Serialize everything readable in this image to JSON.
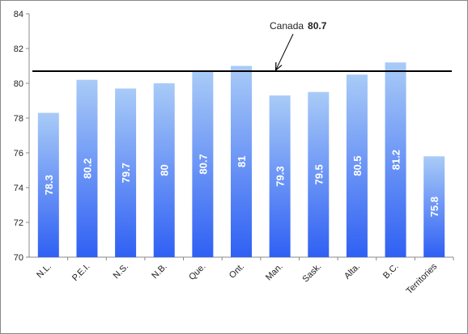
{
  "chart_data": {
    "type": "bar",
    "categories": [
      "N.L.",
      "P.E.I.",
      "N.S.",
      "N.B.",
      "Que.",
      "Ont.",
      "Man.",
      "Sask.",
      "Alta.",
      "B.C.",
      "Territories"
    ],
    "values": [
      78.3,
      80.2,
      79.7,
      80,
      80.7,
      81,
      79.3,
      79.5,
      80.5,
      81.2,
      75.8
    ],
    "color": [
      "#a9cbf7",
      "#2f60f4"
    ],
    "ylim": [
      70,
      84
    ],
    "yticks": [
      70,
      72,
      74,
      76,
      78,
      80,
      82,
      84
    ],
    "grid": false,
    "reference_line": {
      "label": "Canada",
      "value": 80.7,
      "color": "#000000"
    }
  }
}
